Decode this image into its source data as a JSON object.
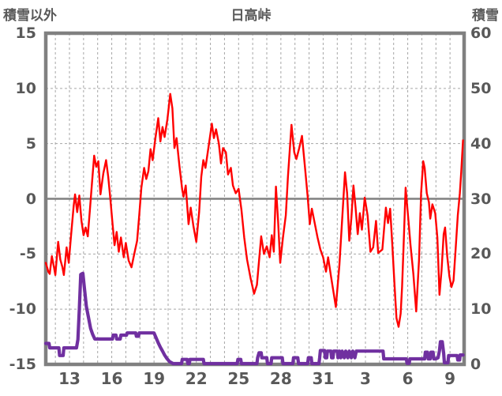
{
  "chart_data": {
    "type": "line",
    "title": "日高峠",
    "left_axis": {
      "title": "積雪以外",
      "min": -15,
      "max": 15,
      "ticks": [
        15,
        10,
        5,
        0,
        -5,
        -10,
        -15
      ]
    },
    "right_axis": {
      "title": "積雪",
      "min": 0,
      "max": 60,
      "ticks": [
        60,
        50,
        40,
        30,
        20,
        10,
        0
      ]
    },
    "x_axis": {
      "tick_labels": [
        "13",
        "16",
        "19",
        "22",
        "25",
        "28",
        "31",
        "3",
        "6",
        "9"
      ],
      "tick_days": [
        13,
        16,
        19,
        22,
        25,
        28,
        31,
        34,
        37,
        40
      ],
      "day_min": 11.32,
      "day_max": 41,
      "gridline_interval_days": 1
    },
    "grid": {
      "color": "#a6a6a6",
      "zero_line_color": "#808080",
      "border_color": "#808080",
      "background": "#ffffff"
    },
    "series": [
      {
        "name": "積雪以外",
        "color": "#ff0000",
        "axis": "left",
        "width": 2.4,
        "points": [
          [
            11.32,
            -5.8
          ],
          [
            11.5,
            -6.6
          ],
          [
            11.6,
            -6.8
          ],
          [
            11.75,
            -5.2
          ],
          [
            11.9,
            -6.2
          ],
          [
            12.0,
            -6.9
          ],
          [
            12.2,
            -3.9
          ],
          [
            12.35,
            -5.5
          ],
          [
            12.5,
            -6.2
          ],
          [
            12.6,
            -6.9
          ],
          [
            12.8,
            -4.4
          ],
          [
            12.95,
            -5.8
          ],
          [
            13.1,
            -3.5
          ],
          [
            13.3,
            -0.6
          ],
          [
            13.4,
            0.4
          ],
          [
            13.55,
            -1.2
          ],
          [
            13.7,
            0.3
          ],
          [
            13.85,
            -2.0
          ],
          [
            14.0,
            -3.3
          ],
          [
            14.15,
            -2.6
          ],
          [
            14.3,
            -3.4
          ],
          [
            14.45,
            -1.0
          ],
          [
            14.6,
            1.5
          ],
          [
            14.75,
            3.9
          ],
          [
            14.9,
            2.9
          ],
          [
            15.05,
            3.4
          ],
          [
            15.2,
            0.4
          ],
          [
            15.4,
            2.3
          ],
          [
            15.6,
            3.5
          ],
          [
            15.75,
            2.0
          ],
          [
            15.9,
            0.0
          ],
          [
            16.05,
            -2.2
          ],
          [
            16.2,
            -4.2
          ],
          [
            16.35,
            -3.0
          ],
          [
            16.5,
            -4.8
          ],
          [
            16.65,
            -3.5
          ],
          [
            16.85,
            -5.3
          ],
          [
            17.0,
            -4.0
          ],
          [
            17.2,
            -5.6
          ],
          [
            17.4,
            -6.2
          ],
          [
            17.6,
            -5.0
          ],
          [
            17.8,
            -3.8
          ],
          [
            17.95,
            -1.5
          ],
          [
            18.1,
            1.0
          ],
          [
            18.3,
            2.8
          ],
          [
            18.45,
            1.8
          ],
          [
            18.6,
            2.5
          ],
          [
            18.75,
            4.5
          ],
          [
            18.9,
            3.5
          ],
          [
            19.1,
            5.5
          ],
          [
            19.3,
            7.3
          ],
          [
            19.45,
            5.2
          ],
          [
            19.6,
            6.5
          ],
          [
            19.75,
            5.6
          ],
          [
            19.95,
            7.2
          ],
          [
            20.15,
            9.5
          ],
          [
            20.3,
            8.2
          ],
          [
            20.45,
            4.6
          ],
          [
            20.6,
            5.5
          ],
          [
            20.8,
            3.0
          ],
          [
            21.0,
            0.8
          ],
          [
            21.1,
            0.2
          ],
          [
            21.25,
            1.2
          ],
          [
            21.45,
            -2.3
          ],
          [
            21.6,
            -0.8
          ],
          [
            21.8,
            -2.5
          ],
          [
            22.0,
            -3.9
          ],
          [
            22.2,
            -1.2
          ],
          [
            22.35,
            2.0
          ],
          [
            22.5,
            3.5
          ],
          [
            22.65,
            2.8
          ],
          [
            22.9,
            5.0
          ],
          [
            23.1,
            6.8
          ],
          [
            23.25,
            5.5
          ],
          [
            23.4,
            6.3
          ],
          [
            23.6,
            5.0
          ],
          [
            23.75,
            3.2
          ],
          [
            23.9,
            4.6
          ],
          [
            24.1,
            4.2
          ],
          [
            24.25,
            2.2
          ],
          [
            24.45,
            2.8
          ],
          [
            24.6,
            1.2
          ],
          [
            24.8,
            0.5
          ],
          [
            25.0,
            0.9
          ],
          [
            25.2,
            -1.0
          ],
          [
            25.4,
            -3.5
          ],
          [
            25.6,
            -5.5
          ],
          [
            25.85,
            -7.2
          ],
          [
            26.1,
            -8.6
          ],
          [
            26.3,
            -7.8
          ],
          [
            26.6,
            -3.4
          ],
          [
            26.8,
            -5.0
          ],
          [
            27.0,
            -4.3
          ],
          [
            27.2,
            -5.3
          ],
          [
            27.35,
            -3.3
          ],
          [
            27.5,
            -4.8
          ],
          [
            27.65,
            1.1
          ],
          [
            27.8,
            -2.0
          ],
          [
            27.95,
            -5.8
          ],
          [
            28.15,
            -3.5
          ],
          [
            28.35,
            -1.5
          ],
          [
            28.5,
            2.0
          ],
          [
            28.75,
            6.7
          ],
          [
            28.95,
            4.2
          ],
          [
            29.1,
            3.6
          ],
          [
            29.3,
            4.6
          ],
          [
            29.5,
            5.7
          ],
          [
            29.7,
            3.0
          ],
          [
            29.9,
            0.2
          ],
          [
            30.05,
            -2.3
          ],
          [
            30.2,
            -0.9
          ],
          [
            30.4,
            -2.2
          ],
          [
            30.6,
            -3.5
          ],
          [
            30.8,
            -4.6
          ],
          [
            31.0,
            -5.3
          ],
          [
            31.2,
            -6.6
          ],
          [
            31.35,
            -5.3
          ],
          [
            31.55,
            -7.0
          ],
          [
            31.9,
            -9.8
          ],
          [
            32.15,
            -6.0
          ],
          [
            32.55,
            2.4
          ],
          [
            32.7,
            0.5
          ],
          [
            32.85,
            -3.8
          ],
          [
            33.0,
            -1.8
          ],
          [
            33.15,
            1.2
          ],
          [
            33.3,
            -0.8
          ],
          [
            33.45,
            -3.2
          ],
          [
            33.6,
            -1.3
          ],
          [
            33.75,
            -2.8
          ],
          [
            33.95,
            0.1
          ],
          [
            34.15,
            -1.5
          ],
          [
            34.35,
            -4.8
          ],
          [
            34.55,
            -4.4
          ],
          [
            34.75,
            -2.0
          ],
          [
            34.9,
            -4.9
          ],
          [
            35.2,
            -4.6
          ],
          [
            35.45,
            -0.8
          ],
          [
            35.6,
            -2.2
          ],
          [
            35.75,
            -0.9
          ],
          [
            35.9,
            -4.0
          ],
          [
            36.05,
            -7.5
          ],
          [
            36.2,
            -10.8
          ],
          [
            36.35,
            -11.6
          ],
          [
            36.5,
            -10.4
          ],
          [
            36.6,
            -8.0
          ],
          [
            36.7,
            -4.5
          ],
          [
            36.85,
            1.0
          ],
          [
            37.05,
            -2.0
          ],
          [
            37.2,
            -4.2
          ],
          [
            37.4,
            -6.8
          ],
          [
            37.6,
            -10.2
          ],
          [
            37.8,
            -5.5
          ],
          [
            37.95,
            0.5
          ],
          [
            38.1,
            3.4
          ],
          [
            38.2,
            2.8
          ],
          [
            38.35,
            0.5
          ],
          [
            38.5,
            -0.3
          ],
          [
            38.6,
            -1.8
          ],
          [
            38.75,
            -0.5
          ],
          [
            38.95,
            -1.3
          ],
          [
            39.1,
            -3.5
          ],
          [
            39.25,
            -8.7
          ],
          [
            39.4,
            -6.5
          ],
          [
            39.55,
            -3.2
          ],
          [
            39.65,
            -2.6
          ],
          [
            39.8,
            -5.2
          ],
          [
            39.95,
            -7.0
          ],
          [
            40.1,
            -8.0
          ],
          [
            40.25,
            -7.4
          ],
          [
            40.4,
            -4.5
          ],
          [
            40.55,
            -1.5
          ],
          [
            40.7,
            0.5
          ],
          [
            40.8,
            2.5
          ],
          [
            40.92,
            5.3
          ]
        ]
      },
      {
        "name": "積雪",
        "color": "#7030a0",
        "axis": "right",
        "width": 4.2,
        "points": [
          [
            11.32,
            3.8
          ],
          [
            11.55,
            3.8
          ],
          [
            11.6,
            3.0
          ],
          [
            12.25,
            3.0
          ],
          [
            12.3,
            1.6
          ],
          [
            12.55,
            1.6
          ],
          [
            12.6,
            3.0
          ],
          [
            13.5,
            3.0
          ],
          [
            13.6,
            4.5
          ],
          [
            13.7,
            10.0
          ],
          [
            13.8,
            16.3
          ],
          [
            13.95,
            16.5
          ],
          [
            14.05,
            14.0
          ],
          [
            14.2,
            10.5
          ],
          [
            14.35,
            8.5
          ],
          [
            14.5,
            6.5
          ],
          [
            14.65,
            5.4
          ],
          [
            14.8,
            4.6
          ],
          [
            16.05,
            4.6
          ],
          [
            16.1,
            5.3
          ],
          [
            16.3,
            5.3
          ],
          [
            16.35,
            4.6
          ],
          [
            16.6,
            4.6
          ],
          [
            16.65,
            5.3
          ],
          [
            17.05,
            5.3
          ],
          [
            17.1,
            5.7
          ],
          [
            17.7,
            5.7
          ],
          [
            17.75,
            5.1
          ],
          [
            17.9,
            5.1
          ],
          [
            17.95,
            5.7
          ],
          [
            19.0,
            5.7
          ],
          [
            19.15,
            4.8
          ],
          [
            19.3,
            3.9
          ],
          [
            19.45,
            3.1
          ],
          [
            19.6,
            2.4
          ],
          [
            19.75,
            1.7
          ],
          [
            19.9,
            1.1
          ],
          [
            20.1,
            0.5
          ],
          [
            20.35,
            0.15
          ],
          [
            20.95,
            0.15
          ],
          [
            21.0,
            0.9
          ],
          [
            21.35,
            0.9
          ],
          [
            21.4,
            0.15
          ],
          [
            21.5,
            0.15
          ],
          [
            21.55,
            0.9
          ],
          [
            22.5,
            0.9
          ],
          [
            22.55,
            0.15
          ],
          [
            24.9,
            0.15
          ],
          [
            24.95,
            0.9
          ],
          [
            25.15,
            0.9
          ],
          [
            25.2,
            0.15
          ],
          [
            26.3,
            0.15
          ],
          [
            26.35,
            1.2
          ],
          [
            26.45,
            2.1
          ],
          [
            26.6,
            2.1
          ],
          [
            26.65,
            1.2
          ],
          [
            27.0,
            1.2
          ],
          [
            27.05,
            0.15
          ],
          [
            27.3,
            0.15
          ],
          [
            27.35,
            1.2
          ],
          [
            28.1,
            1.2
          ],
          [
            28.15,
            0.15
          ],
          [
            28.85,
            0.15
          ],
          [
            28.9,
            1.2
          ],
          [
            29.2,
            1.2
          ],
          [
            29.25,
            0.15
          ],
          [
            29.9,
            0.15
          ],
          [
            29.95,
            1.2
          ],
          [
            30.15,
            1.2
          ],
          [
            30.2,
            0.15
          ],
          [
            30.7,
            0.15
          ],
          [
            30.75,
            1.2
          ],
          [
            30.8,
            2.5
          ],
          [
            31.1,
            2.5
          ],
          [
            31.15,
            1.2
          ],
          [
            31.25,
            1.2
          ],
          [
            31.3,
            2.4
          ],
          [
            31.55,
            2.4
          ],
          [
            31.6,
            1.2
          ],
          [
            31.7,
            1.2
          ],
          [
            31.75,
            2.4
          ],
          [
            32.0,
            2.4
          ],
          [
            32.05,
            1.2
          ],
          [
            32.15,
            2.4
          ],
          [
            32.25,
            1.2
          ],
          [
            32.35,
            2.4
          ],
          [
            32.5,
            1.2
          ],
          [
            32.6,
            2.4
          ],
          [
            32.75,
            1.2
          ],
          [
            32.85,
            2.4
          ],
          [
            33.0,
            1.2
          ],
          [
            33.1,
            2.4
          ],
          [
            33.25,
            1.2
          ],
          [
            33.35,
            2.4
          ],
          [
            35.25,
            2.4
          ],
          [
            35.3,
            1.0
          ],
          [
            36.9,
            1.0
          ],
          [
            36.95,
            0.2
          ],
          [
            37.1,
            0.2
          ],
          [
            37.15,
            1.0
          ],
          [
            38.2,
            1.0
          ],
          [
            38.25,
            2.2
          ],
          [
            38.4,
            2.2
          ],
          [
            38.45,
            1.0
          ],
          [
            38.6,
            1.0
          ],
          [
            38.65,
            2.2
          ],
          [
            38.8,
            2.2
          ],
          [
            38.85,
            1.0
          ],
          [
            39.0,
            1.0
          ],
          [
            39.15,
            1.2
          ],
          [
            39.25,
            2.5
          ],
          [
            39.32,
            4.1
          ],
          [
            39.45,
            4.1
          ],
          [
            39.55,
            2.0
          ],
          [
            39.6,
            0.3
          ],
          [
            39.85,
            0.3
          ],
          [
            39.9,
            1.6
          ],
          [
            40.5,
            1.6
          ],
          [
            40.55,
            0.8
          ],
          [
            40.68,
            0.8
          ],
          [
            40.72,
            1.7
          ],
          [
            40.92,
            1.7
          ]
        ]
      }
    ]
  }
}
